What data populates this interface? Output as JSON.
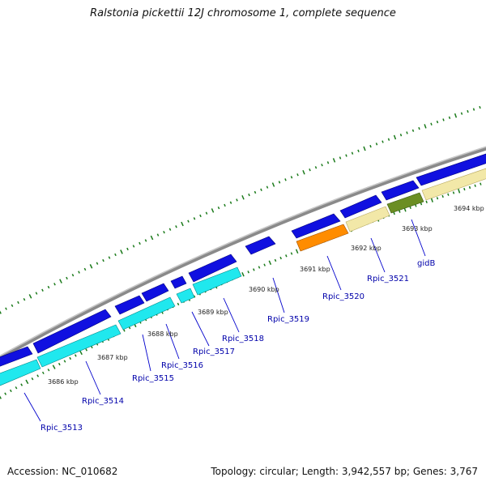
{
  "title": "Ralstonia pickettii 12J chromosome 1, complete sequence",
  "accession_text": "Accession: NC_010682",
  "summary_text": "Topology: circular; Length: 3,942,557 bp; Genes: 3,767",
  "colors": {
    "backbone": "#8a8a8a",
    "cds_forward": "#1010e0",
    "cds_reverse": "#20e8ee",
    "orange_feature": "#ff8c00",
    "pale_feature": "#f2e8a8",
    "olive_feature": "#6b8e23",
    "tick": "#1a7a1a",
    "label_line": "#0000cc"
  },
  "kbp_labels": [
    "3686 kbp",
    "3687 kbp",
    "3688 kbp",
    "3689 kbp",
    "3690 kbp",
    "3691 kbp",
    "3692 kbp",
    "3693 kbp",
    "3694 kbp"
  ],
  "gene_labels": [
    "Rpic_3513",
    "Rpic_3514",
    "Rpic_3515",
    "Rpic_3516",
    "Rpic_3517",
    "Rpic_3518",
    "Rpic_3519",
    "Rpic_3520",
    "Rpic_3521",
    "gidB"
  ]
}
